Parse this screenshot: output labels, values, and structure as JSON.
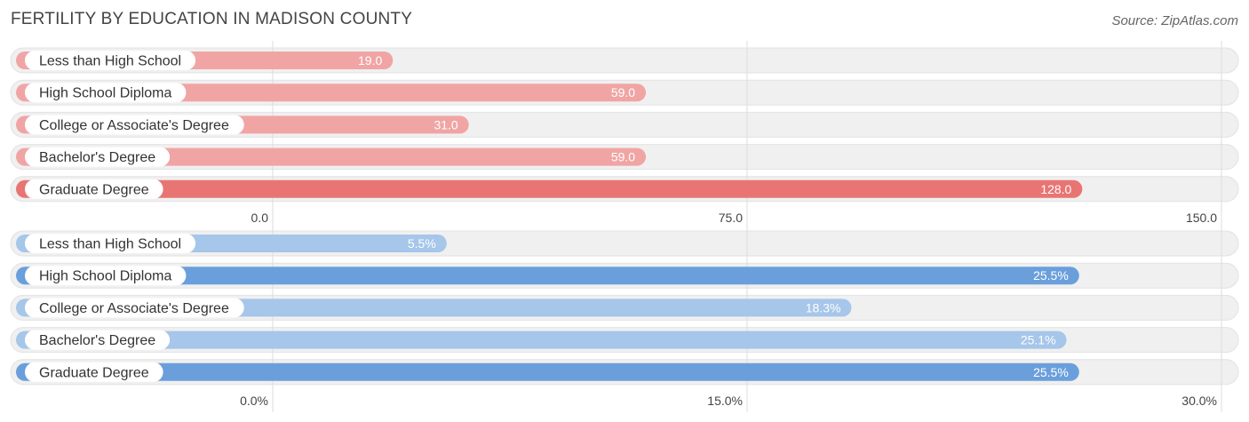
{
  "header": {
    "title": "FERTILITY BY EDUCATION IN MADISON COUNTY",
    "source": "Source: ZipAtlas.com"
  },
  "chart_data": [
    {
      "type": "bar",
      "orientation": "horizontal",
      "categories": [
        "Less than High School",
        "High School Diploma",
        "College or Associate's Degree",
        "Bachelor's Degree",
        "Graduate Degree"
      ],
      "values": [
        19.0,
        59.0,
        31.0,
        59.0,
        128.0
      ],
      "value_labels": [
        "19.0",
        "59.0",
        "31.0",
        "59.0",
        "128.0"
      ],
      "xlim": [
        0,
        150
      ],
      "ticks": [
        0,
        75,
        150
      ],
      "tick_labels": [
        "0.0",
        "75.0",
        "150.0"
      ],
      "colors": {
        "max": "#e87573",
        "normal": "#f0a5a4",
        "track": "#efefef"
      },
      "grid": true
    },
    {
      "type": "bar",
      "orientation": "horizontal",
      "categories": [
        "Less than High School",
        "High School Diploma",
        "College or Associate's Degree",
        "Bachelor's Degree",
        "Graduate Degree"
      ],
      "values": [
        5.5,
        25.5,
        18.3,
        25.1,
        25.5
      ],
      "value_labels": [
        "5.5%",
        "25.5%",
        "18.3%",
        "25.1%",
        "25.5%"
      ],
      "xlim": [
        0,
        30
      ],
      "ticks": [
        0,
        15,
        30
      ],
      "tick_labels": [
        "0.0%",
        "15.0%",
        "30.0%"
      ],
      "colors": {
        "max": "#6a9fdc",
        "normal": "#a6c6ea",
        "track": "#efefef"
      },
      "grid": true
    }
  ]
}
